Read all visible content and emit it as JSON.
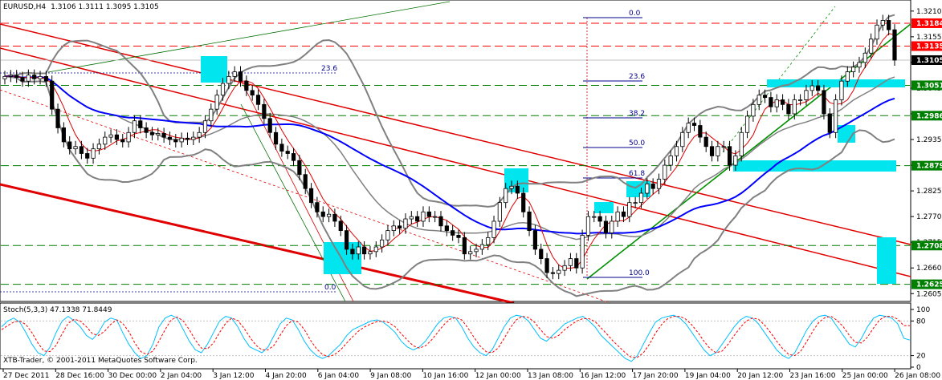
{
  "header": {
    "symbol_tf": "EURUSD,H4",
    "ohlc": "1.3106 1.3111 1.3095 1.3105",
    "indicator": "Stoch(5,3,3) 47.1338 71.8449",
    "copyright": "XTB-Trader, © 2001-2011 MetaQuotes Software Corp."
  },
  "chart_data": [
    {
      "type": "candlestick",
      "title": "EURUSD,H4",
      "ylim": [
        1.259,
        1.3232
      ],
      "y_ticks": [
        "1.3210",
        "1.3155",
        "1.3100",
        "1.3045",
        "1.2990",
        "1.2935",
        "1.2880",
        "1.2825",
        "1.2770",
        "1.2715",
        "1.2660",
        "1.2605"
      ],
      "x_ticks": [
        "27 Dec 2011",
        "28 Dec 16:00",
        "30 Dec 00:00",
        "2 Jan 04:00",
        "3 Jan 12:00",
        "4 Jan 20:00",
        "6 Jan 04:00",
        "9 Jan 08:00",
        "10 Jan 16:00",
        "12 Jan 00:00",
        "13 Jan 08:00",
        "16 Jan 12:00",
        "17 Jan 20:00",
        "19 Jan 04:00",
        "20 Jan 12:00",
        "23 Jan 16:00",
        "25 Jan 00:00",
        "26 Jan 08:00"
      ],
      "levels": [
        {
          "price": 1.3184,
          "label": "1.3184",
          "color": "#ff0000"
        },
        {
          "price": 1.3135,
          "label": "1.3135",
          "color": "#ff0000"
        },
        {
          "price": 1.3105,
          "label": "1.3105",
          "color": "#000000"
        },
        {
          "price": 1.3051,
          "label": "1.3051",
          "color": "#008000"
        },
        {
          "price": 1.2986,
          "label": "1.2986",
          "color": "#008000"
        },
        {
          "price": 1.2879,
          "label": "1.2879",
          "color": "#008000"
        },
        {
          "price": 1.2708,
          "label": "1.2708",
          "color": "#008000"
        },
        {
          "price": 1.2625,
          "label": "1.2625",
          "color": "#008000"
        }
      ],
      "fib_labels": [
        "0.0",
        "23.6",
        "38.2",
        "50.0",
        "61.8",
        "100.0"
      ],
      "left_fib_labels": [
        "23.6",
        "0.0"
      ],
      "closes": [
        1.307,
        1.3072,
        1.3068,
        1.306,
        1.3073,
        1.3065,
        1.307,
        1.306,
        1.3,
        1.296,
        1.293,
        1.2915,
        1.292,
        1.2905,
        1.2895,
        1.2915,
        1.2925,
        1.294,
        1.2945,
        1.2935,
        1.293,
        1.295,
        1.2975,
        1.296,
        1.295,
        1.2945,
        1.2948,
        1.294,
        1.2935,
        1.293,
        1.2938,
        1.2935,
        1.294,
        1.295,
        1.2975,
        1.3,
        1.303,
        1.3055,
        1.307,
        1.308,
        1.306,
        1.304,
        1.303,
        1.301,
        1.298,
        1.295,
        1.2925,
        1.291,
        1.2905,
        1.289,
        1.286,
        1.283,
        1.28,
        1.278,
        1.277,
        1.2775,
        1.276,
        1.274,
        1.27,
        1.269,
        1.2705,
        1.269,
        1.2695,
        1.2705,
        1.272,
        1.274,
        1.275,
        1.2745,
        1.2765,
        1.277,
        1.276,
        1.278,
        1.277,
        1.277,
        1.275,
        1.274,
        1.273,
        1.2725,
        1.269,
        1.2695,
        1.27,
        1.271,
        1.2725,
        1.276,
        1.28,
        1.283,
        1.2835,
        1.282,
        1.278,
        1.274,
        1.27,
        1.268,
        1.265,
        1.2648,
        1.2655,
        1.2665,
        1.268,
        1.266,
        1.273,
        1.277,
        1.277,
        1.276,
        1.2735,
        1.276,
        1.278,
        1.277,
        1.28,
        1.28,
        1.282,
        1.284,
        1.283,
        1.285,
        1.288,
        1.29,
        1.292,
        1.295,
        1.297,
        1.2965,
        1.294,
        1.292,
        1.29,
        1.292,
        1.292,
        1.288,
        1.29,
        1.295,
        1.2985,
        1.301,
        1.303,
        1.3025,
        1.3005,
        1.302,
        1.301,
        1.299,
        1.302,
        1.302,
        1.304,
        1.305,
        1.304,
        1.299,
        1.295,
        1.302,
        1.306,
        1.308,
        1.309,
        1.31,
        1.312,
        1.315,
        1.318,
        1.319,
        1.317,
        1.3105
      ]
    },
    {
      "type": "line",
      "title": "Stoch(5,3,3)",
      "ylim": [
        0,
        100
      ],
      "y_ticks": [
        "100",
        "80",
        "20",
        "0"
      ],
      "series": [
        {
          "name": "main",
          "color": "#00bfff",
          "values": [
            70,
            80,
            85,
            78,
            60,
            40,
            25,
            20,
            35,
            60,
            80,
            88,
            80,
            70,
            55,
            48,
            60,
            78,
            85,
            82,
            60,
            40,
            25,
            15,
            20,
            40,
            70,
            85,
            90,
            85,
            65,
            45,
            30,
            25,
            40,
            60,
            80,
            88,
            85,
            70,
            50,
            35,
            30,
            25,
            35,
            55,
            75,
            85,
            82,
            65,
            45,
            30,
            20,
            15,
            20,
            30,
            40,
            55,
            65,
            70,
            75,
            80,
            82,
            78,
            70,
            60,
            45,
            35,
            30,
            35,
            45,
            60,
            75,
            85,
            88,
            85,
            70,
            50,
            35,
            25,
            20,
            30,
            50,
            70,
            85,
            90,
            88,
            80,
            65,
            50,
            45,
            55,
            65,
            75,
            80,
            85,
            88,
            80,
            70,
            55,
            45,
            35,
            25,
            15,
            10,
            20,
            40,
            60,
            78,
            85,
            88,
            90,
            85,
            75,
            60,
            45,
            30,
            20,
            25,
            40,
            55,
            70,
            82,
            88,
            85,
            75,
            60,
            45,
            30,
            20,
            15,
            25,
            45,
            65,
            80,
            88,
            90,
            85,
            70,
            55,
            40,
            35,
            50,
            70,
            85,
            90,
            88,
            85,
            75,
            50,
            47
          ]
        },
        {
          "name": "signal",
          "color": "#ff0000",
          "values": [
            65,
            72,
            78,
            80,
            74,
            60,
            42,
            28,
            27,
            38,
            58,
            76,
            83,
            80,
            70,
            58,
            55,
            62,
            74,
            82,
            76,
            62,
            42,
            27,
            22,
            28,
            45,
            65,
            82,
            87,
            80,
            65,
            47,
            33,
            32,
            42,
            60,
            76,
            85,
            81,
            68,
            52,
            38,
            30,
            30,
            38,
            55,
            72,
            81,
            78,
            65,
            47,
            32,
            22,
            18,
            22,
            30,
            42,
            53,
            63,
            70,
            75,
            79,
            80,
            77,
            70,
            58,
            47,
            37,
            33,
            37,
            47,
            60,
            73,
            83,
            86,
            82,
            68,
            52,
            37,
            27,
            25,
            33,
            50,
            68,
            82,
            88,
            86,
            78,
            65,
            53,
            50,
            55,
            65,
            73,
            80,
            84,
            84,
            79,
            68,
            57,
            45,
            35,
            25,
            17,
            17,
            25,
            40,
            59,
            74,
            84,
            88,
            88,
            83,
            73,
            60,
            45,
            32,
            25,
            28,
            40,
            55,
            69,
            80,
            85,
            83,
            73,
            60,
            45,
            32,
            22,
            20,
            28,
            45,
            63,
            78,
            86,
            88,
            81,
            70,
            55,
            43,
            42,
            52,
            68,
            82,
            88,
            88,
            83,
            72,
            72
          ]
        }
      ]
    }
  ]
}
